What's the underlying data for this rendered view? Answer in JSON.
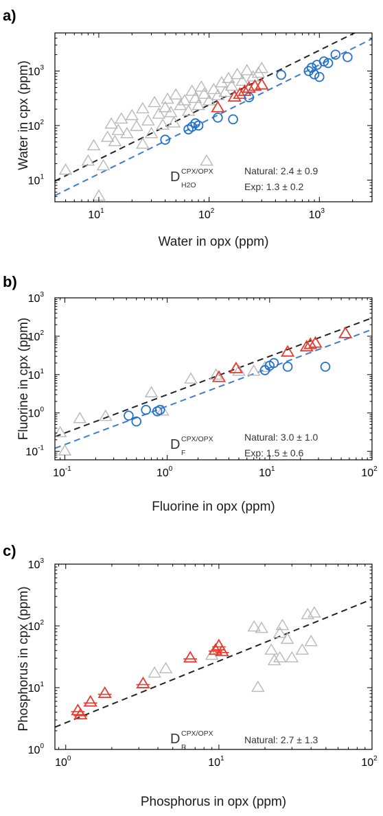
{
  "colors": {
    "background": "#ffffff",
    "frame": "#000000",
    "natural_fit": "#222222",
    "experimental_fit": "#3a7bd5",
    "natural_markers": "#b8b8b8",
    "highlight_markers": "#e53a2c",
    "experimental_markers": "#1f6fcb"
  },
  "marker_semantics": {
    "natural": "triangle-up (grey)",
    "highlight": "triangle-up (red)",
    "experimental": "circle (blue)"
  },
  "chart_data": [
    {
      "panel": "a)",
      "type": "scatter",
      "xscale": "log",
      "yscale": "log",
      "xlabel": "Water in opx (ppm)",
      "ylabel": "Water in cpx (ppm)",
      "xlim": [
        4,
        3000
      ],
      "ylim": [
        4,
        5000
      ],
      "xticks": [
        {
          "mant": "10",
          "exp": "1",
          "value": 10
        },
        {
          "mant": "10",
          "exp": "2",
          "value": 100
        },
        {
          "mant": "10",
          "exp": "3",
          "value": 1000
        }
      ],
      "yticks": [
        {
          "mant": "10",
          "exp": "1",
          "value": 10
        },
        {
          "mant": "10",
          "exp": "2",
          "value": 100
        },
        {
          "mant": "10",
          "exp": "3",
          "value": 1000
        }
      ],
      "grid": false,
      "annotation": {
        "symbol": "D",
        "superscript": "CPX/OPX",
        "subscript": "H2O",
        "natural": "Natural: 2.4 ± 0.9",
        "experimental": "Exp: 1.3 ± 0.2"
      },
      "fits": [
        {
          "kind": "natural",
          "slope": 1.0,
          "D": 2.4
        },
        {
          "kind": "experimental",
          "slope": 1.0,
          "D": 1.3
        }
      ],
      "series": [
        {
          "kind": "natural",
          "marker": "triangle",
          "points": [
            [
              5,
              15
            ],
            [
              8,
              22
            ],
            [
              9,
              42
            ],
            [
              10,
              5
            ],
            [
              11,
              18
            ],
            [
              12,
              60
            ],
            [
              13,
              105
            ],
            [
              14,
              50
            ],
            [
              15,
              80
            ],
            [
              16,
              130
            ],
            [
              18,
              70
            ],
            [
              20,
              150
            ],
            [
              22,
              95
            ],
            [
              25,
              45
            ],
            [
              25,
              200
            ],
            [
              28,
              120
            ],
            [
              30,
              70
            ],
            [
              32,
              260
            ],
            [
              35,
              160
            ],
            [
              38,
              100
            ],
            [
              40,
              210
            ],
            [
              42,
              300
            ],
            [
              45,
              170
            ],
            [
              48,
              110
            ],
            [
              50,
              360
            ],
            [
              55,
              230
            ],
            [
              60,
              280
            ],
            [
              65,
              180
            ],
            [
              70,
              420
            ],
            [
              75,
              310
            ],
            [
              80,
              230
            ],
            [
              85,
              500
            ],
            [
              90,
              370
            ],
            [
              95,
              22
            ],
            [
              100,
              280
            ],
            [
              110,
              450
            ],
            [
              120,
              350
            ],
            [
              130,
              600
            ],
            [
              140,
              400
            ],
            [
              150,
              720
            ],
            [
              160,
              520
            ],
            [
              180,
              850
            ],
            [
              200,
              640
            ],
            [
              220,
              1000
            ],
            [
              250,
              770
            ],
            [
              280,
              900
            ],
            [
              300,
              1100
            ]
          ]
        },
        {
          "kind": "highlight",
          "marker": "triangle",
          "points": [
            [
              120,
              210
            ],
            [
              170,
              330
            ],
            [
              190,
              370
            ],
            [
              210,
              420
            ],
            [
              230,
              480
            ],
            [
              260,
              520
            ],
            [
              300,
              550
            ]
          ]
        },
        {
          "kind": "experimental",
          "marker": "circle",
          "points": [
            [
              40,
              55
            ],
            [
              65,
              85
            ],
            [
              70,
              95
            ],
            [
              75,
              110
            ],
            [
              80,
              100
            ],
            [
              120,
              140
            ],
            [
              165,
              130
            ],
            [
              230,
              330
            ],
            [
              450,
              850
            ],
            [
              800,
              1000
            ],
            [
              850,
              1150
            ],
            [
              900,
              870
            ],
            [
              950,
              1300
            ],
            [
              1000,
              780
            ],
            [
              1100,
              1500
            ],
            [
              1200,
              1400
            ],
            [
              1400,
              2000
            ],
            [
              1800,
              1800
            ]
          ]
        }
      ]
    },
    {
      "panel": "b)",
      "type": "scatter",
      "xscale": "log",
      "yscale": "log",
      "xlabel": "Fluorine in opx (ppm)",
      "ylabel": "Fluorine in cpx (ppm)",
      "xlim": [
        0.08,
        100
      ],
      "ylim": [
        0.06,
        1000
      ],
      "xticks": [
        {
          "mant": "10",
          "exp": "-1",
          "value": 0.1
        },
        {
          "mant": "10",
          "exp": "0",
          "value": 1
        },
        {
          "mant": "10",
          "exp": "1",
          "value": 10
        },
        {
          "mant": "10",
          "exp": "2",
          "value": 100
        }
      ],
      "yticks": [
        {
          "mant": "10",
          "exp": "-1",
          "value": 0.1
        },
        {
          "mant": "10",
          "exp": "0",
          "value": 1
        },
        {
          "mant": "10",
          "exp": "1",
          "value": 10
        },
        {
          "mant": "10",
          "exp": "2",
          "value": 100
        },
        {
          "mant": "10",
          "exp": "3",
          "value": 1000
        }
      ],
      "grid": false,
      "annotation": {
        "symbol": "D",
        "superscript": "CPX/OPX",
        "subscript": "F",
        "natural": "Natural: 3.0 ± 1.0",
        "experimental": "Exp: 1.5 ± 0.6"
      },
      "fits": [
        {
          "kind": "natural",
          "slope": 1.0,
          "D": 3.0
        },
        {
          "kind": "experimental",
          "slope": 1.0,
          "D": 1.5
        }
      ],
      "series": [
        {
          "kind": "natural",
          "marker": "triangle",
          "points": [
            [
              0.09,
              0.3
            ],
            [
              0.1,
              0.1
            ],
            [
              0.14,
              0.7
            ],
            [
              0.25,
              0.8
            ],
            [
              0.7,
              3.3
            ],
            [
              0.9,
              1.1
            ],
            [
              1.7,
              7.5
            ],
            [
              3.0,
              9.5
            ],
            [
              5.0,
              12
            ],
            [
              7.0,
              12
            ],
            [
              9.0,
              15
            ]
          ]
        },
        {
          "kind": "highlight",
          "marker": "triangle",
          "points": [
            [
              3.2,
              8.3
            ],
            [
              4.7,
              14
            ],
            [
              15,
              38
            ],
            [
              23,
              52
            ],
            [
              25,
              60
            ],
            [
              28,
              65
            ],
            [
              55,
              115
            ]
          ]
        },
        {
          "kind": "experimental",
          "marker": "circle",
          "points": [
            [
              0.42,
              0.85
            ],
            [
              0.5,
              0.6
            ],
            [
              0.62,
              1.2
            ],
            [
              0.8,
              1.1
            ],
            [
              0.85,
              1.2
            ],
            [
              9,
              13
            ],
            [
              10,
              17
            ],
            [
              11,
              20
            ],
            [
              15,
              16
            ],
            [
              35,
              16
            ]
          ]
        }
      ]
    },
    {
      "panel": "c)",
      "type": "scatter",
      "xscale": "log",
      "yscale": "log",
      "xlabel": "Phosphorus in opx (ppm)",
      "ylabel": "Phosphorus in cpx (ppm)",
      "xlim": [
        0.85,
        100
      ],
      "ylim": [
        1,
        1000
      ],
      "xticks": [
        {
          "mant": "10",
          "exp": "0",
          "value": 1
        },
        {
          "mant": "10",
          "exp": "1",
          "value": 10
        },
        {
          "mant": "10",
          "exp": "2",
          "value": 100
        }
      ],
      "yticks": [
        {
          "mant": "10",
          "exp": "0",
          "value": 1
        },
        {
          "mant": "10",
          "exp": "1",
          "value": 10
        },
        {
          "mant": "10",
          "exp": "2",
          "value": 100
        },
        {
          "mant": "10",
          "exp": "3",
          "value": 1000
        }
      ],
      "grid": false,
      "annotation": {
        "symbol": "D",
        "superscript": "CPX/OPX",
        "subscript": "P",
        "natural": "Natural: 2.7 ± 1.3",
        "experimental": ""
      },
      "fits": [
        {
          "kind": "natural",
          "slope": 1.0,
          "D": 2.7
        }
      ],
      "series": [
        {
          "kind": "natural",
          "marker": "triangle",
          "points": [
            [
              3.8,
              17
            ],
            [
              4.5,
              20
            ],
            [
              9.0,
              33
            ],
            [
              17,
              95
            ],
            [
              18,
              10
            ],
            [
              19,
              90
            ],
            [
              22,
              40
            ],
            [
              23,
              27
            ],
            [
              25,
              30
            ],
            [
              25,
              75
            ],
            [
              26,
              100
            ],
            [
              28,
              60
            ],
            [
              30,
              30
            ],
            [
              35,
              40
            ],
            [
              38,
              150
            ],
            [
              40,
              55
            ],
            [
              42,
              160
            ]
          ]
        },
        {
          "kind": "highlight",
          "marker": "triangle",
          "points": [
            [
              1.2,
              4.2
            ],
            [
              1.25,
              3.6
            ],
            [
              1.45,
              5.8
            ],
            [
              1.8,
              8
            ],
            [
              3.2,
              11.5
            ],
            [
              6.5,
              30
            ],
            [
              9.5,
              40
            ],
            [
              10,
              47
            ],
            [
              10.5,
              38
            ]
          ]
        }
      ]
    }
  ]
}
